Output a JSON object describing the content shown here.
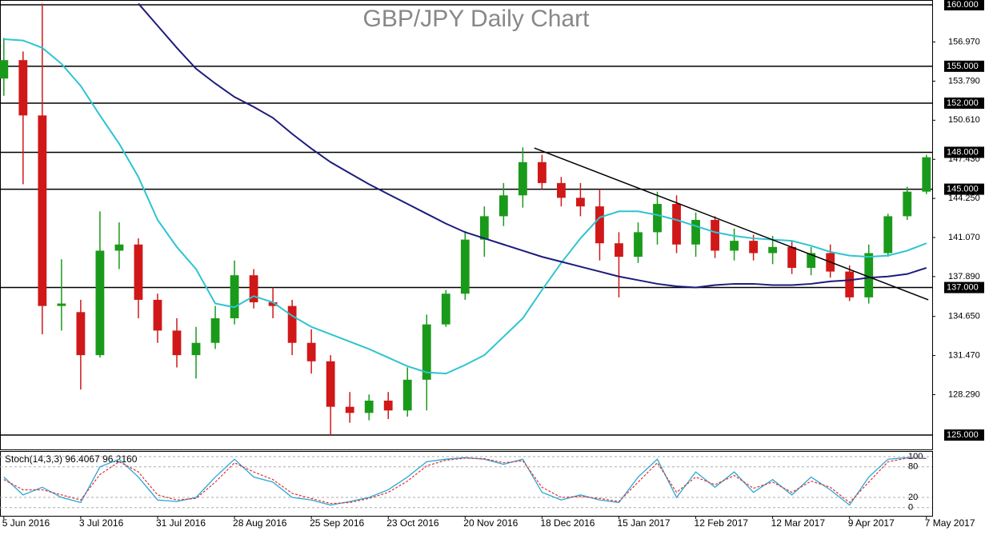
{
  "chart_data": {
    "type": "candlestick",
    "title": "GBP/JPY Daily Chart",
    "xlim": [
      -0.2,
      48.3
    ],
    "ylim": [
      123.83,
      160.39
    ],
    "xticks": [
      {
        "value": 0,
        "label": "5 Jun 2016"
      },
      {
        "value": 4,
        "label": "3 Jul 2016"
      },
      {
        "value": 8,
        "label": "31 Jul 2016"
      },
      {
        "value": 12,
        "label": "28 Aug 2016"
      },
      {
        "value": 16,
        "label": "25 Sep 2016"
      },
      {
        "value": 20,
        "label": "23 Oct 2016"
      },
      {
        "value": 24,
        "label": "20 Nov 2016"
      },
      {
        "value": 28,
        "label": "18 Dec 2016"
      },
      {
        "value": 32,
        "label": "15 Jan 2017"
      },
      {
        "value": 36,
        "label": "12 Feb 2017"
      },
      {
        "value": 40,
        "label": "12 Mar 2017"
      },
      {
        "value": 44,
        "label": "9 Apr 2017"
      },
      {
        "value": 48,
        "label": "7 May 2017"
      }
    ],
    "yticks": [
      {
        "value": 156.97,
        "label": "156.970"
      },
      {
        "value": 153.79,
        "label": "153.790"
      },
      {
        "value": 150.61,
        "label": "150.610"
      },
      {
        "value": 147.43,
        "label": "147.430"
      },
      {
        "value": 144.25,
        "label": "144.250"
      },
      {
        "value": 141.07,
        "label": "141.070"
      },
      {
        "value": 137.89,
        "label": "137.890"
      },
      {
        "value": 134.65,
        "label": "134.650"
      },
      {
        "value": 131.47,
        "label": "131.470"
      },
      {
        "value": 128.29,
        "label": "128.290"
      }
    ],
    "levels": [
      {
        "value": 160,
        "label": "160.000"
      },
      {
        "value": 155,
        "label": "155.000"
      },
      {
        "value": 152,
        "label": "152.000"
      },
      {
        "value": 148,
        "label": "148.000"
      },
      {
        "value": 145,
        "label": "145.000"
      },
      {
        "value": 137,
        "label": "137.000"
      },
      {
        "value": 125,
        "label": "125.000"
      }
    ],
    "up_color": "#1a9a1a",
    "down_color": "#d01818",
    "open": [
      154.0,
      155.5,
      151.0,
      135.5,
      135.0,
      131.5,
      140.0,
      140.5,
      136.0,
      133.5,
      131.5,
      132.5,
      134.5,
      138.0,
      135.8,
      135.5,
      132.5,
      131.0,
      127.3,
      126.8,
      127.8,
      127.0,
      129.5,
      134.0,
      136.5,
      140.9,
      142.8,
      144.5,
      147.2,
      145.5,
      144.3,
      143.6,
      140.6,
      139.5,
      141.5,
      143.8,
      140.5,
      142.5,
      140.0,
      140.8,
      139.8,
      140.3,
      138.6,
      139.8,
      138.3,
      136.2,
      139.8,
      142.8,
      144.8
    ],
    "high": [
      157.3,
      156.2,
      160.1,
      139.3,
      136.0,
      143.2,
      142.3,
      141.0,
      136.5,
      134.5,
      133.8,
      135.5,
      139.2,
      138.5,
      137.0,
      136.0,
      133.6,
      131.5,
      128.5,
      128.3,
      128.5,
      130.5,
      134.8,
      136.8,
      141.6,
      143.6,
      145.5,
      148.4,
      147.8,
      146.0,
      145.5,
      145.0,
      141.5,
      142.3,
      144.8,
      144.5,
      143.1,
      142.8,
      141.8,
      141.3,
      141.2,
      140.8,
      140.3,
      140.5,
      138.8,
      140.5,
      143.0,
      145.2,
      147.8
    ],
    "low": [
      152.6,
      145.4,
      133.2,
      133.5,
      128.7,
      131.3,
      138.5,
      134.5,
      132.5,
      130.5,
      129.6,
      132.0,
      134.0,
      135.3,
      134.5,
      131.5,
      130.0,
      125.0,
      126.0,
      126.2,
      126.3,
      126.5,
      127.0,
      133.8,
      136.0,
      139.5,
      142.0,
      143.5,
      145.0,
      143.6,
      142.8,
      139.2,
      136.2,
      139.0,
      140.5,
      139.8,
      139.5,
      139.4,
      139.2,
      139.2,
      138.9,
      138.1,
      138.0,
      137.8,
      135.9,
      135.7,
      139.5,
      142.5,
      144.6
    ],
    "close": [
      155.5,
      151.0,
      135.5,
      135.7,
      131.5,
      140.0,
      140.5,
      136.0,
      133.5,
      131.5,
      132.5,
      134.5,
      138.0,
      135.8,
      135.5,
      132.5,
      131.0,
      127.3,
      126.8,
      127.8,
      127.0,
      129.5,
      134.0,
      136.5,
      140.9,
      142.8,
      144.5,
      147.2,
      145.5,
      144.3,
      143.6,
      140.6,
      139.5,
      141.5,
      143.8,
      140.5,
      142.5,
      140.0,
      140.8,
      139.8,
      140.3,
      138.6,
      139.8,
      138.3,
      136.2,
      139.8,
      142.8,
      144.8,
      147.6
    ],
    "moving_averages": [
      {
        "color": "#2ec4d0",
        "values": [
          157.2,
          157.1,
          156.5,
          155.2,
          153.4,
          151.0,
          148.7,
          146.0,
          142.5,
          140.3,
          138.5,
          135.7,
          135.4,
          136.3,
          135.8,
          134.7,
          133.8,
          133.2,
          132.6,
          132.0,
          131.3,
          130.6,
          130.1,
          130.0,
          130.7,
          131.5,
          133.0,
          134.5,
          136.8,
          139.0,
          141.0,
          142.7,
          143.2,
          143.2,
          142.9,
          142.5,
          142.0,
          141.5,
          141.2,
          141.0,
          140.9,
          140.8,
          140.4,
          139.9,
          139.6,
          139.5,
          139.6,
          140.0,
          140.6
        ]
      },
      {
        "color": "#1c1c7c",
        "values": [
          null,
          null,
          null,
          null,
          null,
          null,
          null,
          160.1,
          158.3,
          156.5,
          154.8,
          153.6,
          152.5,
          151.7,
          150.8,
          149.5,
          148.3,
          147.2,
          146.3,
          145.4,
          144.6,
          143.8,
          143.0,
          142.2,
          141.5,
          141.0,
          140.5,
          140.0,
          139.5,
          139.1,
          138.7,
          138.3,
          137.9,
          137.6,
          137.3,
          137.1,
          137.0,
          137.2,
          137.3,
          137.3,
          137.2,
          137.2,
          137.3,
          137.5,
          137.6,
          137.8,
          137.9,
          138.1,
          138.6
        ]
      }
    ],
    "trendline": {
      "color": "#000000",
      "x": [
        27.6,
        48.1
      ],
      "y": [
        148.35,
        136.0
      ]
    },
    "stoch": {
      "label": "Stoch(14,3,3) 96.4067 96.2160",
      "ylim": [
        -16,
        111
      ],
      "yticks": [
        100,
        80,
        20,
        0
      ],
      "k": {
        "color": "#2aa6d6",
        "values": [
          60,
          25,
          40,
          20,
          10,
          80,
          95,
          60,
          15,
          12,
          20,
          60,
          95,
          60,
          50,
          20,
          15,
          5,
          12,
          20,
          35,
          60,
          90,
          95,
          98,
          95,
          85,
          95,
          30,
          15,
          25,
          15,
          10,
          60,
          95,
          20,
          70,
          40,
          70,
          30,
          55,
          25,
          60,
          35,
          5,
          60,
          95,
          98,
          96.4067
        ]
      },
      "d": {
        "color": "#e03030",
        "values": [
          55,
          35,
          35,
          25,
          15,
          65,
          90,
          70,
          25,
          15,
          18,
          50,
          88,
          70,
          55,
          28,
          18,
          8,
          10,
          18,
          30,
          52,
          82,
          93,
          97,
          96,
          88,
          92,
          40,
          20,
          22,
          18,
          12,
          50,
          88,
          30,
          60,
          45,
          63,
          38,
          50,
          30,
          52,
          40,
          10,
          50,
          90,
          97,
          96.216
        ]
      }
    }
  }
}
